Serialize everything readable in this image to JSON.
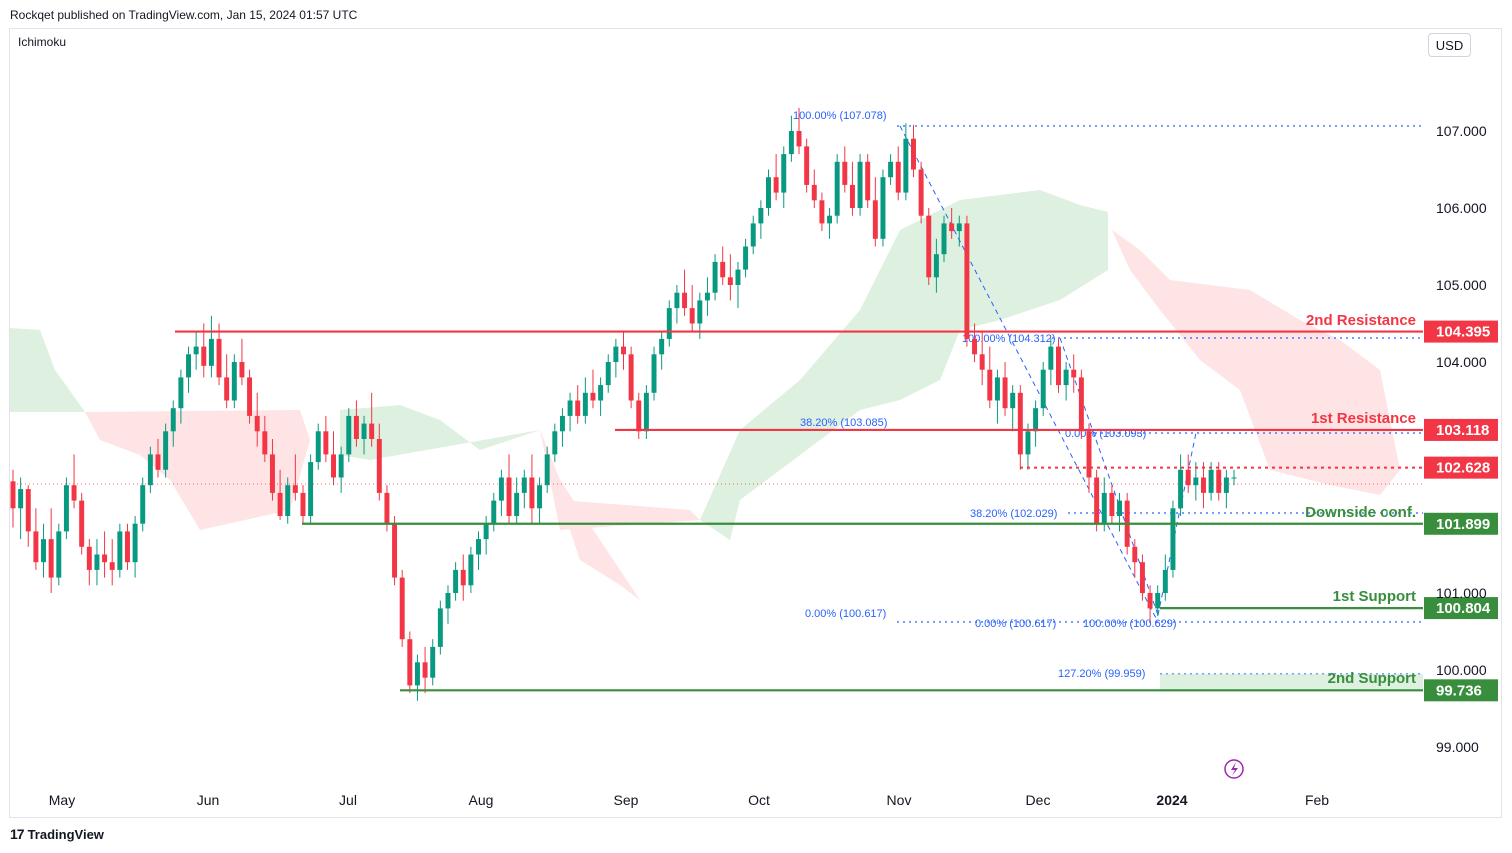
{
  "header": {
    "publisher_line": "Rockqet published on TradingView.com, Jan 15, 2024 01:57 UTC",
    "indicator": "Ichimoku",
    "currency": "USD"
  },
  "footer": {
    "logo_text": "TradingView"
  },
  "chart_data": {
    "type": "candlestick",
    "y_axis": {
      "ticks": [
        "107.000",
        "106.000",
        "105.000",
        "104.000",
        "101.000",
        "100.000",
        "99.000"
      ],
      "ylim": [
        98.4,
        107.9
      ]
    },
    "x_axis": {
      "ticks": [
        "May",
        "Jun",
        "Jul",
        "Aug",
        "Sep",
        "Oct",
        "Nov",
        "Dec",
        "2024",
        "Feb"
      ]
    },
    "levels": [
      {
        "name": "2nd Resistance",
        "value": 104.395,
        "label": "104.395",
        "color": "#f23645"
      },
      {
        "name": "1st Resistance",
        "value": 103.118,
        "label": "103.118",
        "color": "#f23645"
      },
      {
        "name": "",
        "value": 102.628,
        "label": "102.628",
        "color": "#f23645",
        "dotted": true
      },
      {
        "name": "Downside conf.",
        "value": 101.899,
        "label": "101.899",
        "color": "#388e3c"
      },
      {
        "name": "1st Support",
        "value": 100.804,
        "label": "100.804",
        "color": "#388e3c"
      },
      {
        "name": "2nd Support",
        "value": 99.736,
        "label": "99.736",
        "color": "#388e3c"
      }
    ],
    "fib_labels": [
      "100.00% (107.078)",
      "38.20% (103.085)",
      "0.00% (100.617)",
      "100.00% (104.312)",
      "0.00% (103.093)",
      "38.20% (102.029)",
      "0.00% (100.617)",
      "100.00% (100.629)",
      "127.20% (99.959)"
    ],
    "colors": {
      "up": "#089981",
      "down": "#f23645",
      "cloud_bull": "#c8e6c9",
      "cloud_bear": "#fdd9d9",
      "fib": "#2962ff"
    },
    "candles": [
      [
        102.45,
        102.6,
        101.85,
        102.1
      ],
      [
        102.1,
        102.5,
        101.7,
        102.35
      ],
      [
        102.35,
        102.4,
        101.6,
        101.8
      ],
      [
        101.8,
        102.1,
        101.3,
        101.4
      ],
      [
        101.4,
        101.9,
        101.2,
        101.7
      ],
      [
        101.7,
        102.1,
        101.0,
        101.2
      ],
      [
        101.2,
        101.9,
        101.1,
        101.8
      ],
      [
        101.8,
        102.5,
        101.7,
        102.4
      ],
      [
        102.4,
        102.8,
        102.1,
        102.2
      ],
      [
        102.2,
        102.3,
        101.5,
        101.6
      ],
      [
        101.6,
        101.7,
        101.1,
        101.3
      ],
      [
        101.3,
        101.7,
        101.1,
        101.5
      ],
      [
        101.5,
        101.8,
        101.2,
        101.4
      ],
      [
        101.4,
        101.7,
        101.1,
        101.3
      ],
      [
        101.3,
        101.9,
        101.2,
        101.8
      ],
      [
        101.8,
        101.9,
        101.3,
        101.4
      ],
      [
        101.4,
        102.0,
        101.2,
        101.9
      ],
      [
        101.9,
        102.5,
        101.8,
        102.4
      ],
      [
        102.4,
        102.9,
        102.3,
        102.8
      ],
      [
        102.8,
        103.0,
        102.5,
        102.6
      ],
      [
        102.6,
        103.2,
        102.5,
        103.1
      ],
      [
        103.1,
        103.5,
        102.9,
        103.4
      ],
      [
        103.4,
        103.9,
        103.2,
        103.8
      ],
      [
        103.8,
        104.2,
        103.6,
        104.1
      ],
      [
        104.1,
        104.4,
        103.9,
        104.2
      ],
      [
        104.2,
        104.5,
        103.8,
        103.95
      ],
      [
        103.95,
        104.6,
        103.8,
        104.3
      ],
      [
        104.3,
        104.5,
        103.7,
        103.8
      ],
      [
        103.8,
        104.1,
        103.4,
        103.5
      ],
      [
        103.5,
        104.1,
        103.4,
        104.0
      ],
      [
        104.0,
        104.3,
        103.7,
        103.8
      ],
      [
        103.8,
        103.9,
        103.2,
        103.3
      ],
      [
        103.3,
        103.6,
        102.9,
        103.1
      ],
      [
        103.1,
        103.3,
        102.7,
        102.8
      ],
      [
        102.8,
        103.0,
        102.2,
        102.3
      ],
      [
        102.3,
        102.6,
        101.95,
        102.0
      ],
      [
        102.0,
        102.5,
        101.9,
        102.4
      ],
      [
        102.4,
        102.8,
        102.2,
        102.3
      ],
      [
        102.3,
        102.4,
        101.9,
        102.0
      ],
      [
        102.0,
        102.8,
        101.9,
        102.7
      ],
      [
        102.7,
        103.2,
        102.6,
        103.1
      ],
      [
        103.1,
        103.3,
        102.7,
        102.8
      ],
      [
        102.8,
        103.1,
        102.4,
        102.5
      ],
      [
        102.5,
        102.9,
        102.3,
        102.8
      ],
      [
        102.8,
        103.4,
        102.7,
        103.3
      ],
      [
        103.3,
        103.5,
        102.9,
        103.0
      ],
      [
        103.0,
        103.3,
        102.8,
        103.2
      ],
      [
        103.2,
        103.6,
        102.9,
        103.0
      ],
      [
        103.0,
        103.2,
        102.2,
        102.3
      ],
      [
        102.3,
        102.4,
        101.8,
        101.9
      ],
      [
        101.9,
        102.0,
        101.1,
        101.2
      ],
      [
        101.2,
        101.3,
        100.3,
        100.4
      ],
      [
        100.4,
        100.5,
        99.7,
        99.8
      ],
      [
        99.8,
        100.2,
        99.6,
        100.1
      ],
      [
        100.1,
        100.3,
        99.7,
        99.9
      ],
      [
        99.9,
        100.4,
        99.8,
        100.3
      ],
      [
        100.3,
        100.9,
        100.2,
        100.8
      ],
      [
        100.8,
        101.1,
        100.6,
        101.0
      ],
      [
        101.0,
        101.4,
        100.9,
        101.3
      ],
      [
        101.3,
        101.5,
        100.9,
        101.1
      ],
      [
        101.1,
        101.6,
        101.0,
        101.5
      ],
      [
        101.5,
        101.8,
        101.3,
        101.7
      ],
      [
        101.7,
        102.0,
        101.5,
        101.9
      ],
      [
        101.9,
        102.3,
        101.8,
        102.2
      ],
      [
        102.2,
        102.6,
        102.0,
        102.5
      ],
      [
        102.5,
        102.8,
        101.9,
        102.0
      ],
      [
        102.0,
        102.5,
        101.9,
        102.3
      ],
      [
        102.3,
        102.6,
        102.1,
        102.5
      ],
      [
        102.5,
        102.8,
        101.9,
        102.1
      ],
      [
        102.1,
        102.5,
        101.9,
        102.4
      ],
      [
        102.4,
        102.9,
        102.3,
        102.8
      ],
      [
        102.8,
        103.2,
        102.7,
        103.1
      ],
      [
        103.1,
        103.4,
        102.9,
        103.3
      ],
      [
        103.3,
        103.6,
        103.1,
        103.5
      ],
      [
        103.5,
        103.7,
        103.2,
        103.3
      ],
      [
        103.3,
        103.8,
        103.2,
        103.6
      ],
      [
        103.6,
        103.9,
        103.4,
        103.5
      ],
      [
        103.5,
        103.8,
        103.3,
        103.7
      ],
      [
        103.7,
        104.1,
        103.6,
        104.0
      ],
      [
        104.0,
        104.3,
        103.8,
        104.2
      ],
      [
        104.2,
        104.4,
        103.9,
        104.1
      ],
      [
        104.1,
        104.2,
        103.4,
        103.5
      ],
      [
        103.5,
        103.6,
        103.0,
        103.1
      ],
      [
        103.1,
        103.7,
        103.0,
        103.6
      ],
      [
        103.6,
        104.2,
        103.5,
        104.1
      ],
      [
        104.1,
        104.4,
        103.9,
        104.3
      ],
      [
        104.3,
        104.8,
        104.2,
        104.7
      ],
      [
        104.7,
        105.0,
        104.5,
        104.9
      ],
      [
        104.9,
        105.2,
        104.6,
        104.7
      ],
      [
        104.7,
        105.0,
        104.4,
        104.5
      ],
      [
        104.5,
        104.9,
        104.3,
        104.8
      ],
      [
        104.8,
        105.1,
        104.6,
        104.9
      ],
      [
        104.9,
        105.4,
        104.8,
        105.3
      ],
      [
        105.3,
        105.5,
        105.0,
        105.1
      ],
      [
        105.1,
        105.4,
        104.8,
        105.0
      ],
      [
        105.0,
        105.3,
        104.7,
        105.2
      ],
      [
        105.2,
        105.6,
        105.1,
        105.5
      ],
      [
        105.5,
        105.9,
        105.4,
        105.8
      ],
      [
        105.8,
        106.1,
        105.6,
        106.0
      ],
      [
        106.0,
        106.5,
        105.9,
        106.4
      ],
      [
        106.4,
        106.7,
        106.1,
        106.2
      ],
      [
        106.2,
        106.8,
        106.0,
        106.7
      ],
      [
        106.7,
        107.2,
        106.6,
        107.0
      ],
      [
        107.0,
        107.3,
        106.7,
        106.8
      ],
      [
        106.8,
        106.9,
        106.2,
        106.3
      ],
      [
        106.3,
        106.5,
        106.0,
        106.1
      ],
      [
        106.1,
        106.2,
        105.7,
        105.8
      ],
      [
        105.8,
        106.0,
        105.6,
        105.9
      ],
      [
        105.9,
        106.7,
        105.8,
        106.6
      ],
      [
        106.6,
        106.8,
        106.2,
        106.3
      ],
      [
        106.3,
        106.6,
        105.9,
        106.0
      ],
      [
        106.0,
        106.7,
        105.9,
        106.6
      ],
      [
        106.6,
        106.7,
        106.0,
        106.1
      ],
      [
        106.1,
        106.4,
        105.5,
        105.6
      ],
      [
        105.6,
        106.5,
        105.5,
        106.4
      ],
      [
        106.4,
        106.7,
        106.3,
        106.6
      ],
      [
        106.6,
        106.8,
        106.1,
        106.2
      ],
      [
        106.2,
        107.1,
        106.1,
        106.9
      ],
      [
        106.9,
        107.08,
        106.4,
        106.5
      ],
      [
        106.5,
        106.6,
        105.8,
        105.9
      ],
      [
        105.9,
        106.0,
        105.0,
        105.1
      ],
      [
        105.1,
        105.6,
        104.9,
        105.4
      ],
      [
        105.4,
        105.9,
        105.3,
        105.8
      ],
      [
        105.8,
        106.0,
        105.6,
        105.7
      ],
      [
        105.7,
        105.9,
        105.5,
        105.8
      ],
      [
        105.8,
        105.9,
        104.2,
        104.3
      ],
      [
        104.3,
        104.5,
        104.0,
        104.1
      ],
      [
        104.1,
        104.4,
        103.7,
        103.9
      ],
      [
        103.9,
        104.2,
        103.4,
        103.5
      ],
      [
        103.5,
        103.9,
        103.2,
        103.8
      ],
      [
        103.8,
        104.0,
        103.3,
        103.4
      ],
      [
        103.4,
        103.7,
        103.1,
        103.6
      ],
      [
        103.6,
        103.7,
        102.6,
        102.8
      ],
      [
        102.8,
        103.2,
        102.6,
        103.1
      ],
      [
        103.1,
        103.5,
        102.9,
        103.4
      ],
      [
        103.4,
        104.0,
        103.3,
        103.9
      ],
      [
        103.9,
        104.31,
        103.7,
        104.2
      ],
      [
        104.2,
        104.3,
        103.6,
        103.7
      ],
      [
        103.7,
        104.0,
        103.5,
        103.9
      ],
      [
        103.9,
        104.1,
        103.6,
        103.8
      ],
      [
        103.8,
        103.9,
        103.0,
        103.1
      ],
      [
        103.1,
        103.2,
        102.3,
        102.5
      ],
      [
        102.5,
        102.6,
        101.8,
        101.9
      ],
      [
        101.9,
        102.5,
        101.8,
        102.3
      ],
      [
        102.3,
        102.4,
        101.9,
        102.0
      ],
      [
        102.0,
        102.3,
        101.8,
        102.2
      ],
      [
        102.2,
        102.3,
        101.5,
        101.6
      ],
      [
        101.6,
        101.7,
        101.2,
        101.4
      ],
      [
        101.4,
        101.5,
        100.9,
        101.0
      ],
      [
        101.0,
        101.1,
        100.62,
        100.8
      ],
      [
        100.8,
        101.1,
        100.7,
        101.0
      ],
      [
        101.0,
        101.5,
        100.9,
        101.3
      ],
      [
        101.3,
        102.2,
        101.2,
        102.1
      ],
      [
        102.1,
        102.8,
        102.0,
        102.6
      ],
      [
        102.6,
        102.8,
        102.3,
        102.4
      ],
      [
        102.4,
        102.7,
        102.2,
        102.5
      ],
      [
        102.5,
        102.7,
        102.1,
        102.3
      ],
      [
        102.3,
        102.7,
        102.2,
        102.6
      ],
      [
        102.6,
        102.7,
        102.2,
        102.3
      ],
      [
        102.3,
        102.6,
        102.1,
        102.5
      ],
      [
        102.5,
        102.6,
        102.4,
        102.5
      ]
    ]
  }
}
